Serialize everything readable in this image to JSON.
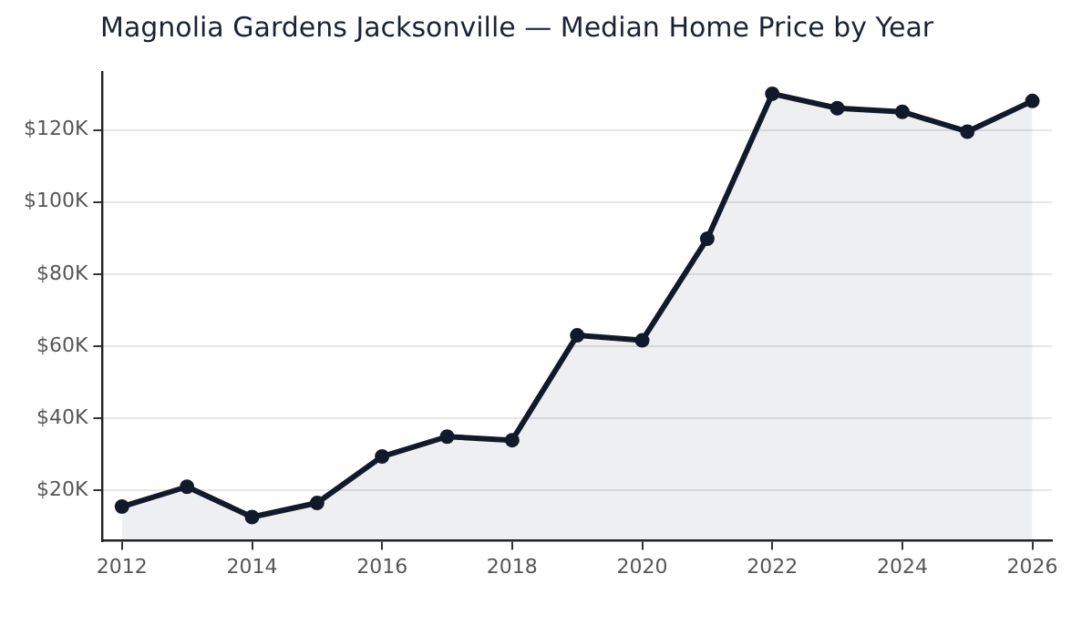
{
  "chart_data": {
    "type": "area",
    "title": "Magnolia Gardens Jacksonville — Median Home Price by Year",
    "x": [
      2012,
      2013,
      2014,
      2015,
      2016,
      2017,
      2018,
      2019,
      2020,
      2021,
      2022,
      2023,
      2024,
      2025,
      2026
    ],
    "series": [
      {
        "color": "#111a2b",
        "values": [
          15.5,
          21,
          12.6,
          16.5,
          29.4,
          34.9,
          33.9,
          63,
          61.6,
          89.8,
          130,
          126,
          125,
          119.5,
          128
        ]
      }
    ],
    "xlim": [
      2011.7,
      2026.3
    ],
    "xticks": [
      2012,
      2014,
      2016,
      2018,
      2020,
      2022,
      2024,
      2026
    ],
    "ylim": [
      6,
      136
    ],
    "yticks": [
      {
        "value": 20,
        "label": "$20K"
      },
      {
        "value": 40,
        "label": "$40K"
      },
      {
        "value": 60,
        "label": "$60K"
      },
      {
        "value": 80,
        "label": "$80K"
      },
      {
        "value": 100,
        "label": "$100K"
      },
      {
        "value": 120,
        "label": "$120K"
      }
    ],
    "grid": "y",
    "legend": false,
    "marker": "circle",
    "line_style": "solid"
  }
}
